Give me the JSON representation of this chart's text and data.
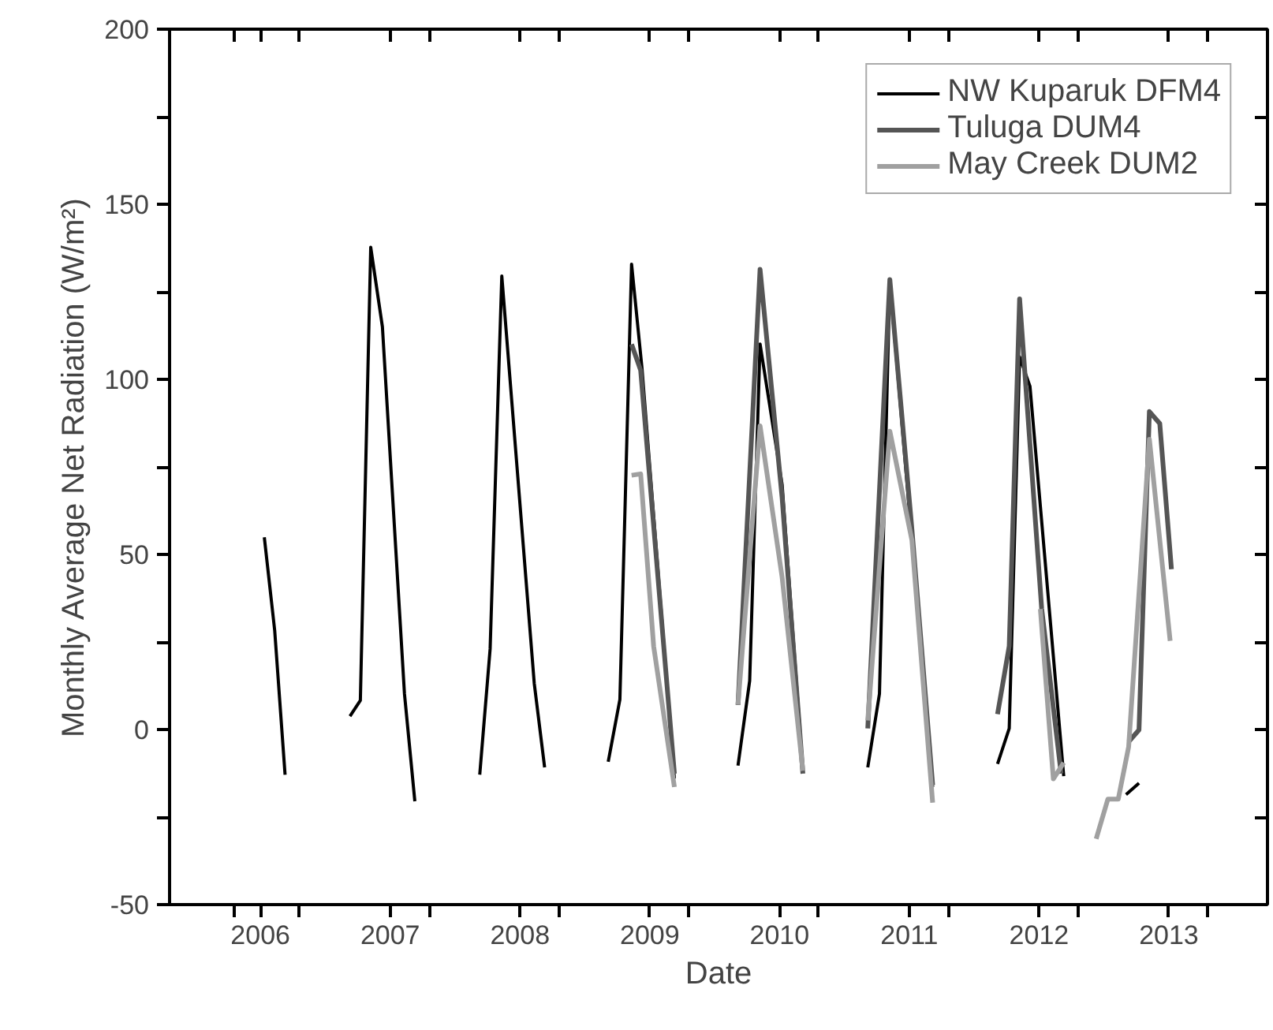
{
  "chart_data": {
    "type": "line",
    "xlabel": "Date",
    "ylabel": "Monthly Average Net Radiation (W/m²)",
    "xlim": [
      2005.3,
      2013.76
    ],
    "ylim": [
      -50,
      200
    ],
    "xticks": [
      {
        "value": 2005.8,
        "label": null
      },
      {
        "value": 2006,
        "label": "2006"
      },
      {
        "value": 2006.3,
        "label": null
      },
      {
        "value": 2007,
        "label": "2007"
      },
      {
        "value": 2007.3,
        "label": null
      },
      {
        "value": 2008,
        "label": "2008"
      },
      {
        "value": 2008.3,
        "label": null
      },
      {
        "value": 2009,
        "label": "2009"
      },
      {
        "value": 2009.3,
        "label": null
      },
      {
        "value": 2010,
        "label": "2010"
      },
      {
        "value": 2010.3,
        "label": null
      },
      {
        "value": 2011,
        "label": "2011"
      },
      {
        "value": 2011.3,
        "label": null
      },
      {
        "value": 2012,
        "label": "2012"
      },
      {
        "value": 2012.3,
        "label": null
      },
      {
        "value": 2013,
        "label": "2013"
      },
      {
        "value": 2013.3,
        "label": null
      }
    ],
    "yticks": [
      -50,
      {
        "value": -25,
        "label": null
      },
      0,
      {
        "value": 25,
        "label": null
      },
      50,
      {
        "value": 75,
        "label": null
      },
      100,
      {
        "value": 125,
        "label": null
      },
      150,
      {
        "value": 175,
        "label": null
      },
      200
    ],
    "grid": false,
    "legend": "top right",
    "series": [
      {
        "name": "NW Kuparuk DFM4",
        "color": "#000000",
        "x": [
          2006.03,
          2006.11,
          2006.19,
          2006.4,
          2006.69,
          2006.77,
          2006.85,
          2006.94,
          2007.11,
          2007.19,
          2007.4,
          2007.69,
          2007.77,
          2007.86,
          2008.11,
          2008.19,
          2008.4,
          2008.68,
          2008.77,
          2008.86,
          2008.94,
          2009.19,
          2009.4,
          2009.68,
          2009.77,
          2009.85,
          2010.02,
          2010.18,
          2010.4,
          2010.68,
          2010.77,
          2010.85,
          2011.18,
          2011.4,
          2011.68,
          2011.77,
          2011.85,
          2011.93,
          2012.19,
          2012.4,
          2012.67,
          2012.77
        ],
        "values": [
          54.9,
          28.3,
          -12.9,
          null,
          3.8,
          8.3,
          137.7,
          115,
          10.2,
          -20.5,
          null,
          -12.9,
          23,
          129.5,
          13.2,
          -10.8,
          null,
          -9.2,
          8.6,
          132.9,
          103.3,
          -14,
          null,
          -10.3,
          13.9,
          110.1,
          70,
          -12,
          null,
          -10.8,
          10.2,
          128.3,
          -16.4,
          null,
          -9.8,
          0.3,
          106.4,
          98,
          -13.3,
          null,
          -18.6,
          -15.3
        ]
      },
      {
        "name": "Tuluga DUM4",
        "color": "#555555",
        "x": [
          2008.86,
          2008.93,
          2009.19,
          2009.4,
          2009.68,
          2009.85,
          2010.02,
          2010.18,
          2010.4,
          2010.68,
          2010.85,
          2011.02,
          2011.18,
          2011.4,
          2011.68,
          2011.77,
          2011.85,
          2012.02,
          2012.17,
          2012.4,
          2012.69,
          2012.77,
          2012.85,
          2012.93,
          2013.02
        ],
        "values": [
          110,
          102.6,
          -12.6,
          null,
          7,
          131.4,
          66.2,
          -12.6,
          null,
          0.3,
          128.5,
          57.2,
          -15.9,
          null,
          4.4,
          23.8,
          123,
          34.5,
          -12.6,
          null,
          -3.5,
          -0.1,
          90.8,
          87.4,
          45.8
        ]
      },
      {
        "name": "May Creek DUM2",
        "color": "#a0a0a0",
        "x": [
          2008.86,
          2008.93,
          2009.03,
          2009.19,
          2009.4,
          2009.68,
          2009.85,
          2010.02,
          2010.18,
          2010.4,
          2010.68,
          2010.85,
          2011.02,
          2011.18,
          2011.4,
          2012.01,
          2012.11,
          2012.19,
          2012.3,
          2012.44,
          2012.53,
          2012.61,
          2012.69,
          2012.85,
          2013.01
        ],
        "values": [
          72.6,
          73,
          23.8,
          -16.4,
          null,
          7.1,
          86.7,
          43.5,
          -11.8,
          null,
          2.6,
          85.2,
          54.1,
          -20.9,
          null,
          34.4,
          -14.1,
          -9.5,
          null,
          -31.2,
          -19.9,
          -19.9,
          -5,
          82.9,
          25.3
        ]
      }
    ]
  }
}
